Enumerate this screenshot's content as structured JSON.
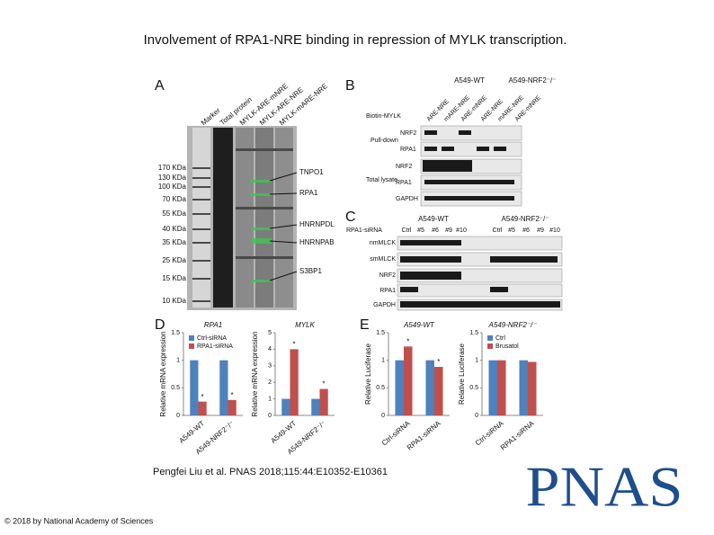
{
  "header": {
    "title": "Involvement of RPA1-NRE binding in repression of MYLK transcription."
  },
  "figure": {
    "panel_a": {
      "label": "A",
      "lanes": [
        "Marker",
        "Total protein",
        "MYLK-ARE-mNRE",
        "MYLK-ARE-NRE",
        "MYLK-mARE-NRE"
      ],
      "markers": [
        "170 KDa",
        "130 KDa",
        "100 KDa",
        "70 KDa",
        "55 KDa",
        "40 KDa",
        "35 KDa",
        "25 KDa",
        "15 KDa",
        "10 KDa"
      ],
      "proteins": [
        "TNPO1",
        "RPA1",
        "HNRNPDL",
        "HNRNPAB",
        "S3BP1"
      ]
    },
    "panel_b": {
      "label": "B",
      "groups": [
        "A549-WT",
        "A549-NRF2⁻/⁻"
      ],
      "lanes": [
        "ARE-NRE",
        "mARE-NRE",
        "ARE-mNRE",
        "ARE-NRE",
        "mARE-NRE",
        "ARE-mNRE"
      ],
      "probe": "Biotin-MYLK",
      "sections": [
        {
          "name": "Pull-down",
          "rows": [
            "NRF2",
            "RPA1"
          ]
        },
        {
          "name": "Total lysate",
          "rows": [
            "NRF2",
            "RPA1",
            "GAPDH"
          ]
        }
      ]
    },
    "panel_c": {
      "label": "C",
      "row_header": "RPA1-siRNA",
      "groups": [
        "A549-WT",
        "A549-NRF2⁻/⁻"
      ],
      "lanes": [
        "Ctrl",
        "#5",
        "#6",
        "#9",
        "#10"
      ],
      "rows": [
        "nmMLCK",
        "smMLCK",
        "NRF2",
        "RPA1",
        "GAPDH"
      ]
    },
    "panel_d": {
      "label": "D",
      "charts": [
        {
          "type": "bar",
          "title": "RPA1",
          "ylabel": "Relative mRNA expression",
          "categories": [
            "A549-WT",
            "A549-NRF2⁻/⁻"
          ],
          "series": [
            {
              "name": "Ctrl-siRNA",
              "color": "#4f81bd",
              "values": [
                1,
                1
              ]
            },
            {
              "name": "RPA1-siRNA",
              "color": "#c0504d",
              "values": [
                0.25,
                0.28
              ]
            }
          ],
          "ylim": [
            0,
            1.5
          ],
          "yticks": [
            0,
            0.5,
            1,
            1.5
          ],
          "legend": true,
          "annotation": "*"
        },
        {
          "type": "bar",
          "title": "MYLK",
          "ylabel": "Relative mRNA expression",
          "categories": [
            "A549-WT",
            "A549-NRF2⁻/⁻"
          ],
          "series": [
            {
              "name": "Ctrl-siRNA",
              "color": "#4f81bd",
              "values": [
                1,
                1
              ]
            },
            {
              "name": "RPA1-siRNA",
              "color": "#c0504d",
              "values": [
                4.0,
                1.6
              ]
            }
          ],
          "ylim": [
            0,
            5
          ],
          "yticks": [
            0,
            1,
            2,
            3,
            4,
            5
          ],
          "legend": false,
          "annotation": "*"
        }
      ]
    },
    "panel_e": {
      "label": "E",
      "charts": [
        {
          "type": "bar",
          "title": "A549-WT",
          "ylabel": "Relative Luciferase",
          "categories": [
            "Ctrl-siRNA",
            "RPA1-siRNA"
          ],
          "series": [
            {
              "name": "Ctrl",
              "color": "#4f81bd",
              "values": [
                1,
                1
              ]
            },
            {
              "name": "Brusatol",
              "color": "#c0504d",
              "values": [
                1.25,
                0.88
              ]
            }
          ],
          "ylim": [
            0,
            1.5
          ],
          "yticks": [
            0,
            0.5,
            1,
            1.5
          ],
          "legend": false,
          "annotation": "*"
        },
        {
          "type": "bar",
          "title": "A549-NRF2⁻/⁻",
          "ylabel": "Relative Luciferase",
          "categories": [
            "Ctrl-siRNA",
            "RPA1-siRNA"
          ],
          "series": [
            {
              "name": "Ctrl",
              "color": "#4f81bd",
              "values": [
                1,
                1
              ]
            },
            {
              "name": "Brusatol",
              "color": "#c0504d",
              "values": [
                1,
                0.97
              ]
            }
          ],
          "ylim": [
            0,
            1.5
          ],
          "yticks": [
            0,
            0.5,
            1,
            1.5
          ],
          "legend": true
        }
      ]
    }
  },
  "citation": "Pengfei Liu et al. PNAS 2018;115:44:E10352-E10361",
  "copyright": "© 2018 by National Academy of Sciences",
  "logo": "PNAS"
}
